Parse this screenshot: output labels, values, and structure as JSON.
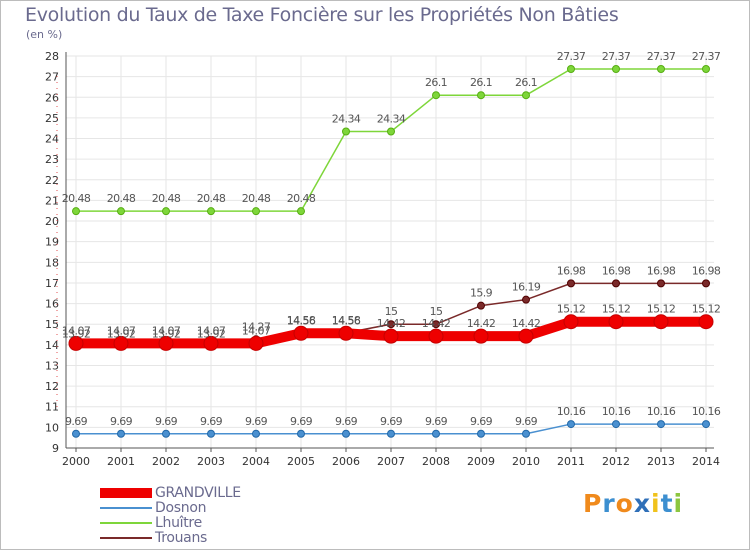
{
  "title": "Evolution du Taux de Taxe Foncière sur les Propriétés Non Bâties",
  "unit_label": "(en %)",
  "logo": {
    "text": "Proxiti",
    "letters": [
      "P",
      "r",
      "o",
      "x",
      "i",
      "t",
      "i"
    ],
    "colors": [
      "#f08a1c",
      "#3c8fd0",
      "#f08a1c",
      "#2f6fb8",
      "#f0c21c",
      "#3c8fd0",
      "#8cc63f"
    ]
  },
  "chart_data": {
    "type": "line",
    "title": "Evolution du Taux de Taxe Foncière sur les Propriétés Non Bâties",
    "ylabel": "(en %)",
    "xlabel": "",
    "x": [
      "2000",
      "2001",
      "2002",
      "2003",
      "2004",
      "2005",
      "2006",
      "2007",
      "2008",
      "2009",
      "2010",
      "2011",
      "2012",
      "2013",
      "2014"
    ],
    "ylim": [
      9,
      28
    ],
    "yticks": [
      9,
      10,
      11,
      12,
      13,
      14,
      15,
      16,
      17,
      18,
      19,
      20,
      21,
      22,
      23,
      24,
      25,
      26,
      27,
      28
    ],
    "grid": true,
    "legend_position": "bottom-left",
    "series": [
      {
        "name": "GRANDVILLE",
        "color": "#ee0000",
        "width": 10,
        "values": [
          14.07,
          14.07,
          14.07,
          14.07,
          14.07,
          14.56,
          14.56,
          14.42,
          14.42,
          14.42,
          14.42,
          15.12,
          15.12,
          15.12,
          15.12
        ],
        "labels": [
          "14.07",
          "14.07",
          "14.07",
          "14.07",
          "14.07",
          "14.56",
          "14.56",
          "14.42",
          "14.42",
          "14.42",
          "14.42",
          "15.12",
          "15.12",
          "15.12",
          "15.12"
        ]
      },
      {
        "name": "Dosnon",
        "color": "#4a90d0",
        "width": 1.5,
        "values": [
          9.69,
          9.69,
          9.69,
          9.69,
          9.69,
          9.69,
          9.69,
          9.69,
          9.69,
          9.69,
          9.69,
          10.16,
          10.16,
          10.16,
          10.16
        ],
        "labels": [
          "9.69",
          "9.69",
          "9.69",
          "9.69",
          "9.69",
          "9.69",
          "9.69",
          "9.69",
          "9.69",
          "9.69",
          "9.69",
          "10.16",
          "10.16",
          "10.16",
          "10.16"
        ]
      },
      {
        "name": "Lhuître",
        "color": "#7ed63a",
        "width": 1.5,
        "values": [
          20.48,
          20.48,
          20.48,
          20.48,
          20.48,
          20.48,
          24.34,
          24.34,
          26.1,
          26.1,
          26.1,
          27.37,
          27.37,
          27.37,
          27.37
        ],
        "labels": [
          "20.48",
          "20.48",
          "20.48",
          "20.48",
          "20.48",
          "20.48",
          "24.34",
          "24.34",
          "26.1",
          "26.1",
          "26.1",
          "27.37",
          "27.37",
          "27.37",
          "27.37"
        ]
      },
      {
        "name": "Trouans",
        "color": "#7a2a2a",
        "width": 1.5,
        "values": [
          13.92,
          13.92,
          13.92,
          13.92,
          14.27,
          14.58,
          14.58,
          15,
          15,
          15.9,
          16.19,
          16.98,
          16.98,
          16.98,
          16.98
        ],
        "labels": [
          "13.92",
          "13.92",
          "13.92",
          "13.92",
          "14.27",
          "14.58",
          "14.58",
          "15",
          "15",
          "15.9",
          "16.19",
          "16.98",
          "16.98",
          "16.98",
          "16.98"
        ]
      }
    ]
  }
}
